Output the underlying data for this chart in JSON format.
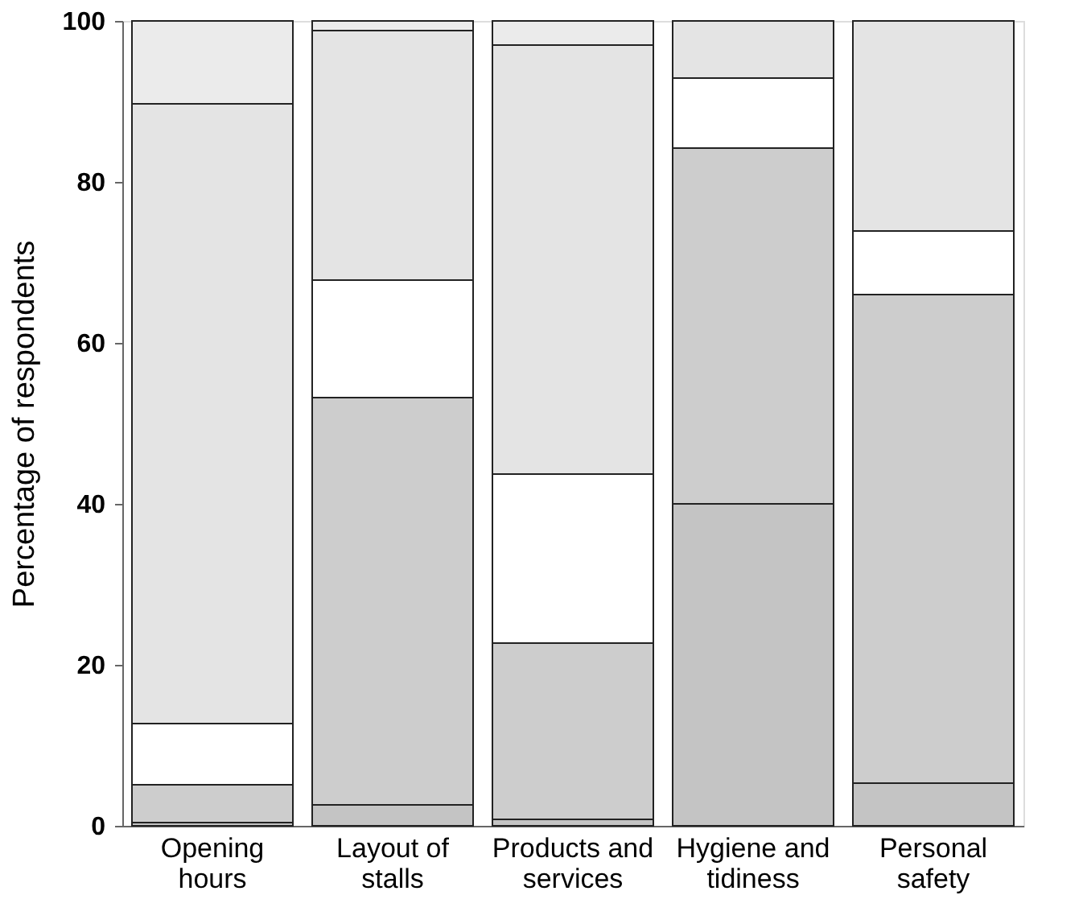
{
  "chart_data": {
    "type": "bar",
    "stacked": true,
    "ylabel": "Percentage of respondents",
    "categories": [
      "Opening hours",
      "Layout of stalls",
      "Products and services",
      "Hygiene and tidiness",
      "Personal safety"
    ],
    "series": [
      {
        "color": "#c4c4c4",
        "values": [
          0.4,
          2.6,
          0.8,
          40.0,
          5.3
        ]
      },
      {
        "color": "#cdcdcd",
        "values": [
          4.7,
          50.6,
          21.9,
          44.2,
          60.7
        ]
      },
      {
        "color": "#ffffff",
        "values": [
          7.6,
          14.6,
          21.0,
          8.7,
          7.9
        ]
      },
      {
        "color": "#e4e4e4",
        "values": [
          77.0,
          31.0,
          53.3,
          7.1,
          26.1
        ]
      },
      {
        "color": "#ebebeb",
        "values": [
          10.3,
          1.2,
          3.0,
          0,
          0
        ]
      }
    ],
    "ylim": [
      0,
      100
    ],
    "yticks": [
      0,
      20,
      40,
      60,
      80,
      100
    ],
    "grid": false,
    "legend": false
  }
}
